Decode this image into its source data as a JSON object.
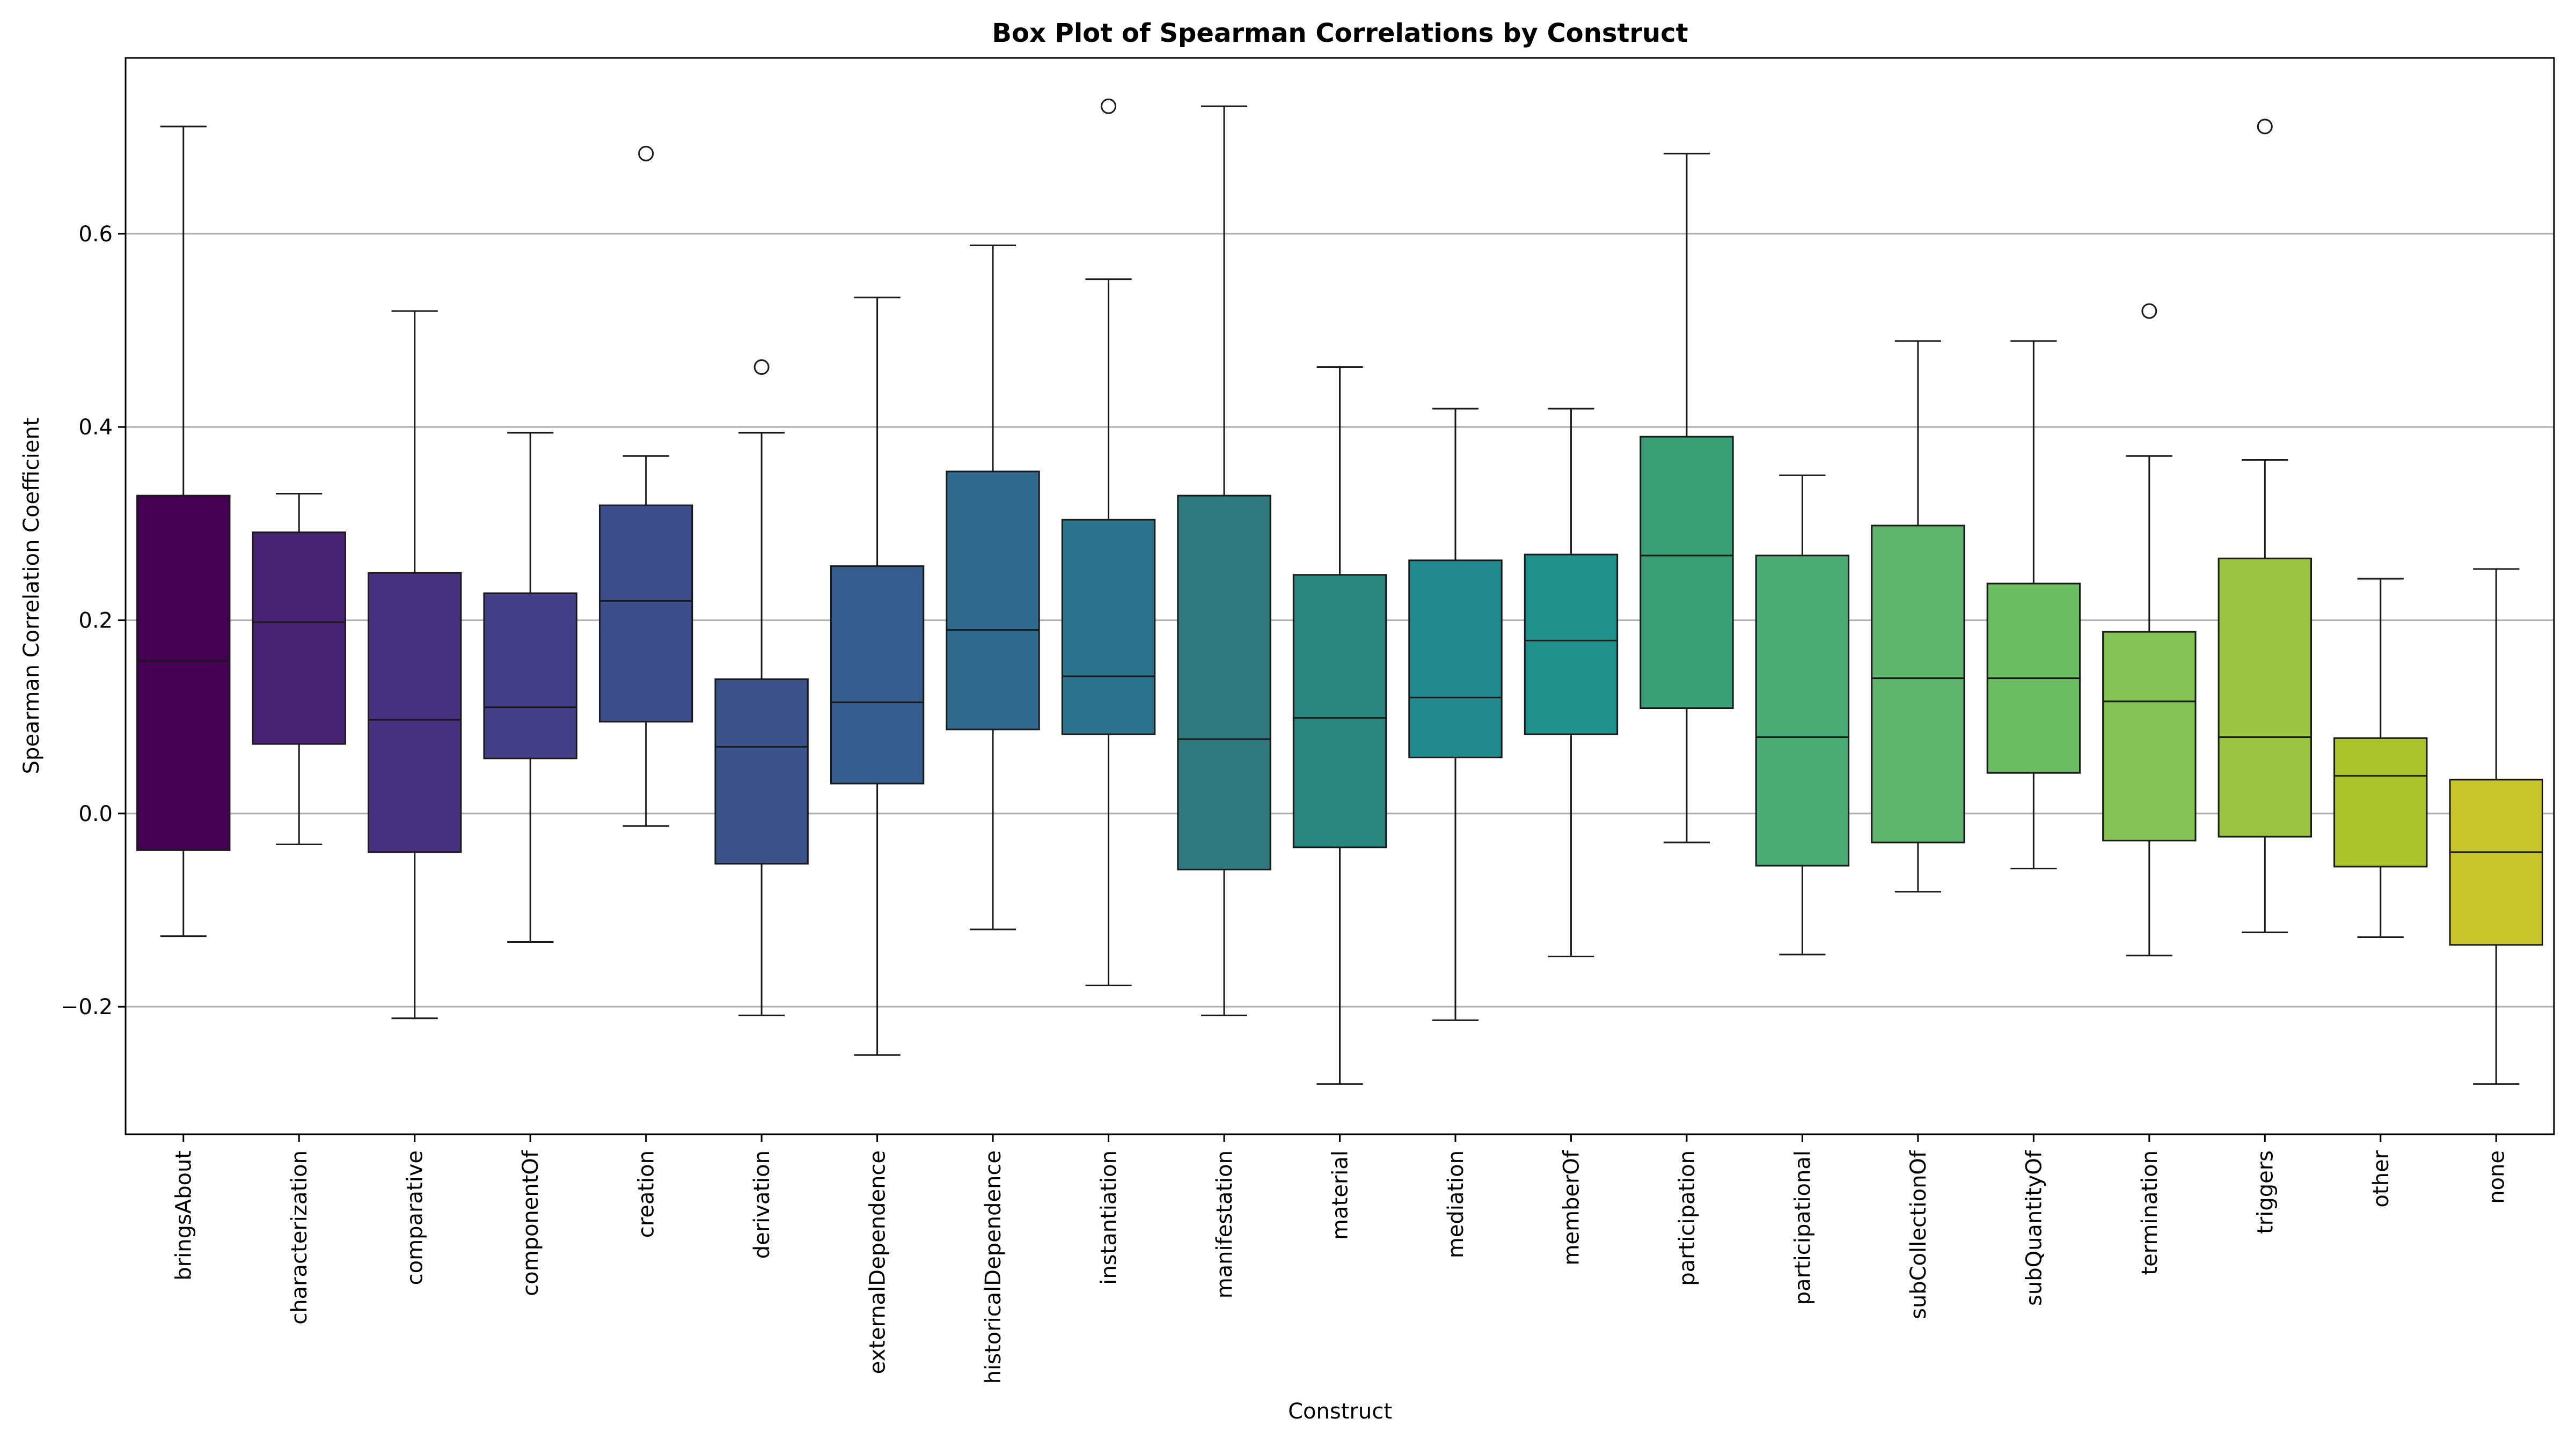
{
  "chart_data": {
    "type": "box",
    "title": "Box Plot of Spearman Correlations by Construct",
    "xlabel": "Construct",
    "ylabel": "Spearman Correlation Coefficient",
    "ylim": [
      -0.332,
      0.782
    ],
    "yticks": [
      -0.2,
      0.0,
      0.2,
      0.4,
      0.6
    ],
    "ytick_labels": [
      "−0.2",
      "0.0",
      "0.2",
      "0.4",
      "0.6"
    ],
    "grid": "horizontal",
    "categories": [
      {
        "name": "bringsAbout",
        "color": "#440154",
        "label_color": "#000000",
        "whislo": -0.127,
        "q1": -0.038,
        "median": 0.158,
        "q3": 0.329,
        "whishi": 0.711,
        "fliers": []
      },
      {
        "name": "characterization",
        "color": "#482374",
        "label_color": "#000000",
        "whislo": -0.032,
        "q1": 0.072,
        "median": 0.198,
        "q3": 0.291,
        "whishi": 0.331,
        "fliers": []
      },
      {
        "name": "comparative",
        "color": "#46327e",
        "label_color": "#000000",
        "whislo": -0.212,
        "q1": -0.04,
        "median": 0.097,
        "q3": 0.249,
        "whishi": 0.52,
        "fliers": []
      },
      {
        "name": "componentOf",
        "color": "#433e85",
        "label_color": "#000000",
        "whislo": -0.133,
        "q1": 0.057,
        "median": 0.11,
        "q3": 0.228,
        "whishi": 0.394,
        "fliers": []
      },
      {
        "name": "creation",
        "color": "#3d4d8a",
        "label_color": "#000000",
        "whislo": -0.013,
        "q1": 0.095,
        "median": 0.22,
        "q3": 0.319,
        "whishi": 0.37,
        "fliers": [
          0.683
        ]
      },
      {
        "name": "derivation",
        "color": "#3b528b",
        "label_color": "#000000",
        "whislo": -0.209,
        "q1": -0.052,
        "median": 0.069,
        "q3": 0.139,
        "whishi": 0.394,
        "fliers": [
          0.462
        ]
      },
      {
        "name": "externalDependence",
        "color": "#365d8d",
        "label_color": "#000000",
        "whislo": -0.25,
        "q1": 0.031,
        "median": 0.115,
        "q3": 0.256,
        "whishi": 0.534,
        "fliers": []
      },
      {
        "name": "historicalDependence",
        "color": "#306a8e",
        "label_color": "#000000",
        "whislo": -0.12,
        "q1": 0.087,
        "median": 0.19,
        "q3": 0.354,
        "whishi": 0.588,
        "fliers": []
      },
      {
        "name": "instantiation",
        "color": "#2c738e",
        "label_color": "#000000",
        "whislo": -0.178,
        "q1": 0.082,
        "median": 0.142,
        "q3": 0.304,
        "whishi": 0.553,
        "fliers": [
          0.732
        ]
      },
      {
        "name": "manifestation",
        "color": "#2e7a7e",
        "label_color": "#000000",
        "whislo": -0.209,
        "q1": -0.058,
        "median": 0.077,
        "q3": 0.329,
        "whishi": 0.732,
        "fliers": []
      },
      {
        "name": "material",
        "color": "#2a857d",
        "label_color": "#000000",
        "whislo": -0.28,
        "q1": -0.035,
        "median": 0.099,
        "q3": 0.247,
        "whishi": 0.462,
        "fliers": []
      },
      {
        "name": "mediation",
        "color": "#238a8d",
        "label_color": "#000000",
        "whislo": -0.214,
        "q1": 0.058,
        "median": 0.12,
        "q3": 0.262,
        "whishi": 0.419,
        "fliers": []
      },
      {
        "name": "memberOf",
        "color": "#21918c",
        "label_color": "#000000",
        "whislo": -0.148,
        "q1": 0.082,
        "median": 0.179,
        "q3": 0.268,
        "whishi": 0.419,
        "fliers": []
      },
      {
        "name": "participation",
        "color": "#3a9e76",
        "label_color": "#000000",
        "whislo": -0.03,
        "q1": 0.109,
        "median": 0.267,
        "q3": 0.39,
        "whishi": 0.683,
        "fliers": []
      },
      {
        "name": "participational",
        "color": "#4aab74",
        "label_color": "#000000",
        "whislo": -0.146,
        "q1": -0.054,
        "median": 0.079,
        "q3": 0.267,
        "whishi": 0.35,
        "fliers": []
      },
      {
        "name": "subCollectionOf",
        "color": "#5fb46c",
        "label_color": "#000000",
        "whislo": -0.081,
        "q1": -0.03,
        "median": 0.14,
        "q3": 0.298,
        "whishi": 0.489,
        "fliers": []
      },
      {
        "name": "subQuantityOf",
        "color": "#6cbc62",
        "label_color": "#000000",
        "whislo": -0.057,
        "q1": 0.042,
        "median": 0.14,
        "q3": 0.238,
        "whishi": 0.489,
        "fliers": []
      },
      {
        "name": "termination",
        "color": "#85c256",
        "label_color": "#000000",
        "whislo": -0.147,
        "q1": -0.028,
        "median": 0.116,
        "q3": 0.188,
        "whishi": 0.37,
        "fliers": [
          0.52
        ]
      },
      {
        "name": "triggers",
        "color": "#9bc444",
        "label_color": "#000000",
        "whislo": -0.123,
        "q1": -0.024,
        "median": 0.079,
        "q3": 0.264,
        "whishi": 0.366,
        "fliers": [
          0.711
        ]
      },
      {
        "name": "other",
        "color": "#acc42b",
        "label_color": "#ff0000",
        "whislo": -0.128,
        "q1": -0.055,
        "median": 0.039,
        "q3": 0.078,
        "whishi": 0.243,
        "fliers": []
      },
      {
        "name": "none",
        "color": "#c8c52a",
        "label_color": "#0000ff",
        "whislo": -0.28,
        "q1": -0.136,
        "median": -0.04,
        "q3": 0.035,
        "whishi": 0.253,
        "fliers": []
      }
    ]
  }
}
